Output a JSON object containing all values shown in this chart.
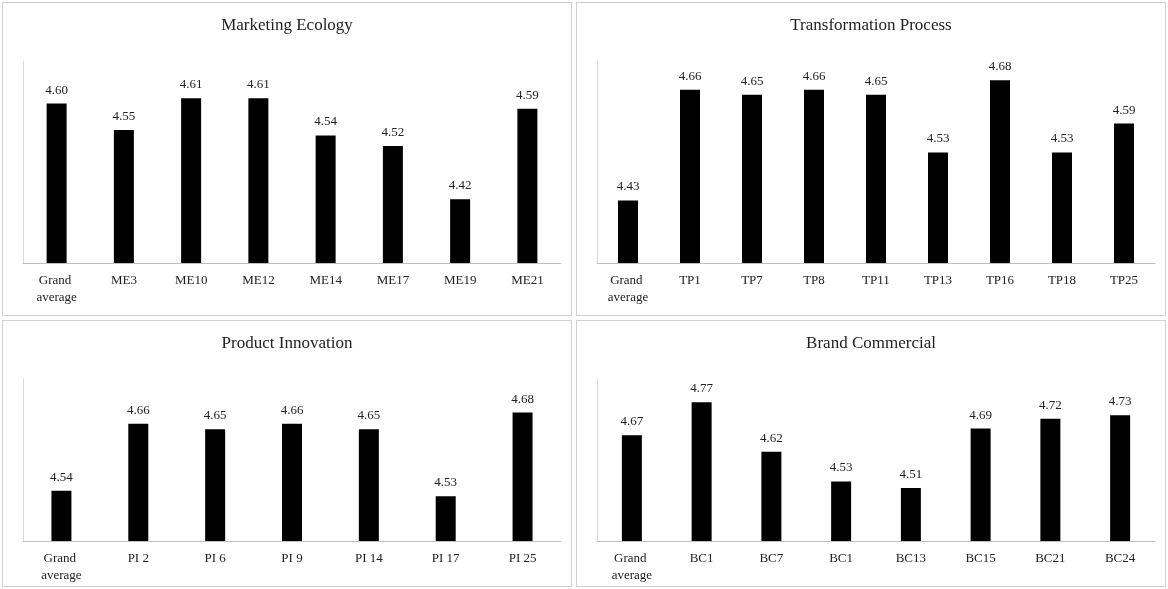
{
  "chart_data": [
    {
      "type": "bar",
      "title": "Marketing Ecology",
      "categories": [
        "Grand average",
        "ME3",
        "ME10",
        "ME12",
        "ME14",
        "ME17",
        "ME19",
        "ME21"
      ],
      "values": [
        4.6,
        4.55,
        4.61,
        4.61,
        4.54,
        4.52,
        4.42,
        4.59
      ],
      "value_labels": [
        "4.60",
        "4.55",
        "4.61",
        "4.61",
        "4.54",
        "4.52",
        "4.42",
        "4.59"
      ],
      "color": "#000000",
      "ylim": [
        4.3,
        4.68
      ]
    },
    {
      "type": "bar",
      "title": "Transformation Process",
      "categories": [
        "Grand average",
        "TP1",
        "TP7",
        "TP8",
        "TP11",
        "TP13",
        "TP16",
        "TP18",
        "TP25"
      ],
      "values": [
        4.43,
        4.66,
        4.65,
        4.66,
        4.65,
        4.53,
        4.68,
        4.53,
        4.59
      ],
      "value_labels": [
        "4.43",
        "4.66",
        "4.65",
        "4.66",
        "4.65",
        "4.53",
        "4.68",
        "4.53",
        "4.59"
      ],
      "color": "#000000",
      "ylim": [
        4.3,
        4.72
      ]
    },
    {
      "type": "bar",
      "title": "Product Innovation",
      "categories": [
        "Grand average",
        "PI 2",
        "PI 6",
        "PI 9",
        "PI 14",
        "PI 17",
        "PI 25"
      ],
      "values": [
        4.54,
        4.66,
        4.65,
        4.66,
        4.65,
        4.53,
        4.68
      ],
      "value_labels": [
        "4.54",
        "4.66",
        "4.65",
        "4.66",
        "4.65",
        "4.53",
        "4.68"
      ],
      "color": "#000000",
      "ylim": [
        4.45,
        4.74
      ]
    },
    {
      "type": "bar",
      "title": "Brand Commercial",
      "categories": [
        "Grand average",
        "BC1",
        "BC7",
        "BC1",
        "BC13",
        "BC15",
        "BC21",
        "BC24"
      ],
      "values": [
        4.67,
        4.77,
        4.62,
        4.53,
        4.51,
        4.69,
        4.72,
        4.73
      ],
      "value_labels": [
        "4.67",
        "4.77",
        "4.62",
        "4.53",
        "4.51",
        "4.69",
        "4.72",
        "4.73"
      ],
      "color": "#000000",
      "ylim": [
        4.35,
        4.84
      ]
    }
  ]
}
